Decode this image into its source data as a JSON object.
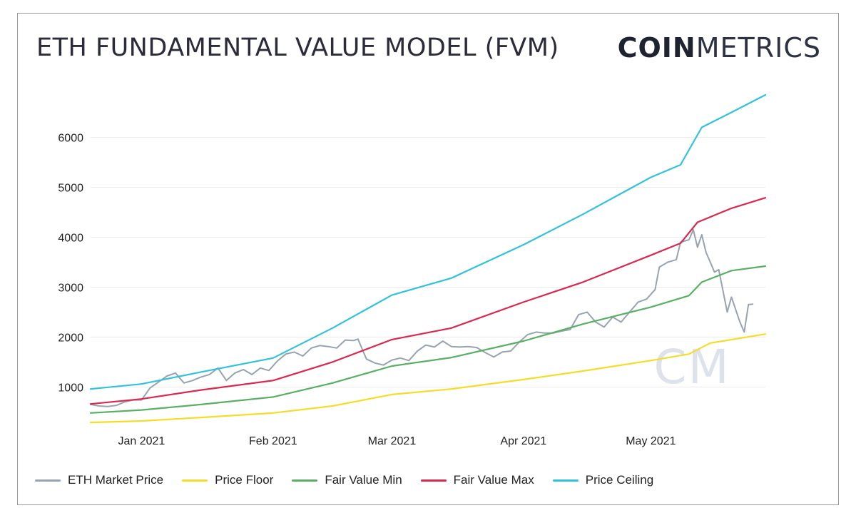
{
  "title": "ETH FUNDAMENTAL VALUE MODEL (FVM)",
  "brand": {
    "bold": "COIN",
    "light": "METRICS"
  },
  "watermark": "CM",
  "chart_data": {
    "type": "line",
    "title": "ETH FUNDAMENTAL VALUE MODEL (FVM)",
    "xlabel": "",
    "ylabel": "",
    "x_range": [
      "2020-12-20",
      "2021-05-28"
    ],
    "ylim": [
      120,
      7050
    ],
    "y_ticks": [
      1000,
      2000,
      3000,
      4000,
      5000,
      6000
    ],
    "x_ticks": [
      {
        "label": "Jan 2021",
        "date": "2021-01-01"
      },
      {
        "label": "Feb 2021",
        "date": "2021-02-01"
      },
      {
        "label": "Mar 2021",
        "date": "2021-03-01"
      },
      {
        "label": "Apr 2021",
        "date": "2021-04-01"
      },
      {
        "label": "May 2021",
        "date": "2021-05-01"
      }
    ],
    "grid": true,
    "legend_position": "bottom",
    "series": [
      {
        "name": "ETH Market Price",
        "color": "#97a3ae",
        "points": [
          [
            "2020-12-20",
            650
          ],
          [
            "2020-12-22",
            620
          ],
          [
            "2020-12-24",
            610
          ],
          [
            "2020-12-26",
            630
          ],
          [
            "2020-12-28",
            700
          ],
          [
            "2020-12-30",
            740
          ],
          [
            "2021-01-01",
            740
          ],
          [
            "2021-01-03",
            980
          ],
          [
            "2021-01-05",
            1100
          ],
          [
            "2021-01-07",
            1220
          ],
          [
            "2021-01-09",
            1280
          ],
          [
            "2021-01-11",
            1080
          ],
          [
            "2021-01-13",
            1130
          ],
          [
            "2021-01-15",
            1200
          ],
          [
            "2021-01-17",
            1250
          ],
          [
            "2021-01-19",
            1380
          ],
          [
            "2021-01-21",
            1130
          ],
          [
            "2021-01-23",
            1280
          ],
          [
            "2021-01-25",
            1350
          ],
          [
            "2021-01-27",
            1250
          ],
          [
            "2021-01-29",
            1380
          ],
          [
            "2021-01-31",
            1330
          ],
          [
            "2021-02-02",
            1520
          ],
          [
            "2021-02-04",
            1660
          ],
          [
            "2021-02-06",
            1700
          ],
          [
            "2021-02-08",
            1620
          ],
          [
            "2021-02-10",
            1780
          ],
          [
            "2021-02-12",
            1830
          ],
          [
            "2021-02-14",
            1810
          ],
          [
            "2021-02-16",
            1780
          ],
          [
            "2021-02-18",
            1940
          ],
          [
            "2021-02-20",
            1930
          ],
          [
            "2021-02-21",
            1960
          ],
          [
            "2021-02-23",
            1560
          ],
          [
            "2021-02-25",
            1480
          ],
          [
            "2021-02-27",
            1440
          ],
          [
            "2021-03-01",
            1540
          ],
          [
            "2021-03-03",
            1580
          ],
          [
            "2021-03-05",
            1530
          ],
          [
            "2021-03-07",
            1720
          ],
          [
            "2021-03-09",
            1840
          ],
          [
            "2021-03-11",
            1800
          ],
          [
            "2021-03-13",
            1920
          ],
          [
            "2021-03-15",
            1810
          ],
          [
            "2021-03-17",
            1800
          ],
          [
            "2021-03-19",
            1810
          ],
          [
            "2021-03-21",
            1790
          ],
          [
            "2021-03-23",
            1690
          ],
          [
            "2021-03-25",
            1600
          ],
          [
            "2021-03-27",
            1700
          ],
          [
            "2021-03-29",
            1720
          ],
          [
            "2021-03-31",
            1900
          ],
          [
            "2021-04-02",
            2050
          ],
          [
            "2021-04-04",
            2100
          ],
          [
            "2021-04-06",
            2080
          ],
          [
            "2021-04-08",
            2080
          ],
          [
            "2021-04-10",
            2120
          ],
          [
            "2021-04-12",
            2150
          ],
          [
            "2021-04-14",
            2450
          ],
          [
            "2021-04-16",
            2500
          ],
          [
            "2021-04-18",
            2300
          ],
          [
            "2021-04-20",
            2200
          ],
          [
            "2021-04-22",
            2400
          ],
          [
            "2021-04-24",
            2300
          ],
          [
            "2021-04-26",
            2500
          ],
          [
            "2021-04-28",
            2700
          ],
          [
            "2021-04-30",
            2760
          ],
          [
            "2021-05-02",
            2950
          ],
          [
            "2021-05-03",
            3400
          ],
          [
            "2021-05-05",
            3500
          ],
          [
            "2021-05-07",
            3550
          ],
          [
            "2021-05-08",
            3900
          ],
          [
            "2021-05-10",
            3950
          ],
          [
            "2021-05-11",
            4150
          ],
          [
            "2021-05-12",
            3800
          ],
          [
            "2021-05-13",
            4050
          ],
          [
            "2021-05-14",
            3700
          ],
          [
            "2021-05-15",
            3500
          ],
          [
            "2021-05-16",
            3300
          ],
          [
            "2021-05-17",
            3350
          ],
          [
            "2021-05-19",
            2500
          ],
          [
            "2021-05-20",
            2800
          ],
          [
            "2021-05-22",
            2300
          ],
          [
            "2021-05-23",
            2100
          ],
          [
            "2021-05-24",
            2650
          ],
          [
            "2021-05-25",
            2660
          ]
        ]
      },
      {
        "name": "Price Floor",
        "color": "#f4dd2a",
        "points": [
          [
            "2020-12-20",
            290
          ],
          [
            "2021-01-01",
            320
          ],
          [
            "2021-01-15",
            390
          ],
          [
            "2021-02-01",
            480
          ],
          [
            "2021-02-15",
            620
          ],
          [
            "2021-03-01",
            850
          ],
          [
            "2021-03-15",
            960
          ],
          [
            "2021-04-01",
            1150
          ],
          [
            "2021-04-15",
            1320
          ],
          [
            "2021-05-01",
            1530
          ],
          [
            "2021-05-10",
            1660
          ],
          [
            "2021-05-15",
            1880
          ],
          [
            "2021-05-28",
            2060
          ]
        ]
      },
      {
        "name": "Fair Value Min",
        "color": "#5aaf65",
        "points": [
          [
            "2020-12-20",
            480
          ],
          [
            "2021-01-01",
            540
          ],
          [
            "2021-01-15",
            650
          ],
          [
            "2021-02-01",
            800
          ],
          [
            "2021-02-15",
            1080
          ],
          [
            "2021-03-01",
            1420
          ],
          [
            "2021-03-15",
            1590
          ],
          [
            "2021-04-01",
            1920
          ],
          [
            "2021-04-15",
            2260
          ],
          [
            "2021-05-01",
            2600
          ],
          [
            "2021-05-10",
            2830
          ],
          [
            "2021-05-13",
            3100
          ],
          [
            "2021-05-20",
            3330
          ],
          [
            "2021-05-28",
            3420
          ]
        ]
      },
      {
        "name": "Fair Value Max",
        "color": "#d8294f",
        "points": [
          [
            "2020-12-20",
            660
          ],
          [
            "2021-01-01",
            760
          ],
          [
            "2021-01-15",
            940
          ],
          [
            "2021-02-01",
            1130
          ],
          [
            "2021-02-15",
            1500
          ],
          [
            "2021-03-01",
            1950
          ],
          [
            "2021-03-15",
            2180
          ],
          [
            "2021-04-01",
            2700
          ],
          [
            "2021-04-15",
            3100
          ],
          [
            "2021-05-01",
            3640
          ],
          [
            "2021-05-08",
            3880
          ],
          [
            "2021-05-12",
            4300
          ],
          [
            "2021-05-20",
            4580
          ],
          [
            "2021-05-28",
            4790
          ]
        ]
      },
      {
        "name": "Price Ceiling",
        "color": "#31c3d9",
        "points": [
          [
            "2020-12-20",
            960
          ],
          [
            "2021-01-01",
            1060
          ],
          [
            "2021-01-15",
            1300
          ],
          [
            "2021-02-01",
            1580
          ],
          [
            "2021-02-15",
            2180
          ],
          [
            "2021-03-01",
            2840
          ],
          [
            "2021-03-15",
            3180
          ],
          [
            "2021-04-01",
            3850
          ],
          [
            "2021-04-15",
            4460
          ],
          [
            "2021-05-01",
            5200
          ],
          [
            "2021-05-08",
            5450
          ],
          [
            "2021-05-13",
            6200
          ],
          [
            "2021-05-20",
            6500
          ],
          [
            "2021-05-28",
            6850
          ]
        ]
      }
    ]
  }
}
